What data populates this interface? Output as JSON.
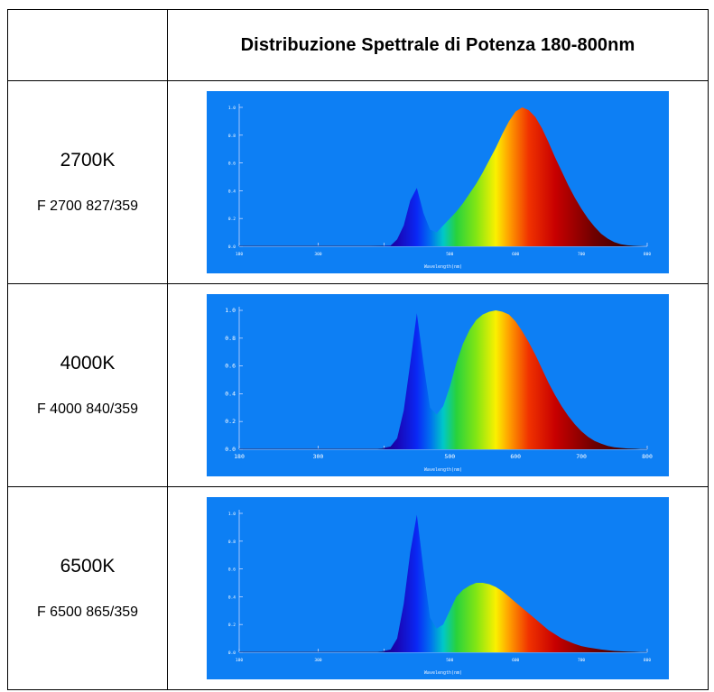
{
  "table": {
    "header": {
      "corner": "",
      "title": "Distribuzione Spettrale di Potenza 180-800nm"
    }
  },
  "chart_data": [
    {
      "type": "area",
      "cct": "2700K",
      "code": "F 2700 827/359",
      "x_ticks": [
        "180",
        "300",
        "",
        "500",
        "600",
        "700",
        "800"
      ],
      "y_ticks": [
        "0.0",
        "0.2",
        "0.4",
        "0.6",
        "0.8",
        "1.0"
      ],
      "xlabel": "Wavelength(nm)",
      "xlim": [
        180,
        800
      ],
      "ylim": [
        0,
        1
      ],
      "x": [
        180,
        380,
        410,
        420,
        430,
        440,
        450,
        460,
        470,
        480,
        490,
        500,
        510,
        520,
        530,
        540,
        550,
        560,
        570,
        580,
        590,
        600,
        610,
        620,
        630,
        640,
        650,
        660,
        670,
        680,
        690,
        700,
        710,
        720,
        730,
        740,
        750,
        760,
        770,
        780,
        790,
        800
      ],
      "y": [
        0,
        0,
        0.005,
        0.05,
        0.15,
        0.33,
        0.42,
        0.24,
        0.12,
        0.1,
        0.15,
        0.2,
        0.25,
        0.31,
        0.38,
        0.45,
        0.53,
        0.62,
        0.71,
        0.81,
        0.9,
        0.97,
        1.0,
        0.98,
        0.93,
        0.85,
        0.75,
        0.64,
        0.54,
        0.44,
        0.35,
        0.27,
        0.2,
        0.14,
        0.09,
        0.055,
        0.03,
        0.015,
        0.007,
        0.003,
        0.001,
        0
      ]
    },
    {
      "type": "area",
      "cct": "4000K",
      "code": "F 4000 840/359",
      "x_ticks": [
        "180",
        "300",
        "",
        "500",
        "600",
        "700",
        "800"
      ],
      "y_ticks": [
        "0.0",
        "0.2",
        "0.4",
        "0.6",
        "0.8",
        "1.0"
      ],
      "xlabel": "Wavelength(nm)",
      "xlim": [
        180,
        800
      ],
      "ylim": [
        0,
        1
      ],
      "x": [
        180,
        390,
        410,
        420,
        430,
        440,
        450,
        460,
        470,
        480,
        490,
        500,
        510,
        520,
        530,
        540,
        550,
        560,
        570,
        580,
        590,
        600,
        610,
        620,
        630,
        640,
        650,
        660,
        670,
        680,
        690,
        700,
        710,
        720,
        730,
        740,
        750,
        760,
        770,
        780,
        790,
        800
      ],
      "y": [
        0,
        0,
        0.02,
        0.08,
        0.28,
        0.62,
        0.98,
        0.62,
        0.3,
        0.25,
        0.31,
        0.45,
        0.62,
        0.76,
        0.86,
        0.93,
        0.97,
        0.99,
        1.0,
        0.99,
        0.97,
        0.92,
        0.85,
        0.77,
        0.68,
        0.58,
        0.48,
        0.39,
        0.31,
        0.24,
        0.18,
        0.13,
        0.09,
        0.06,
        0.04,
        0.025,
        0.015,
        0.01,
        0.006,
        0.004,
        0.002,
        0.001
      ]
    },
    {
      "type": "area",
      "cct": "6500K",
      "code": "F 6500 865/359",
      "x_ticks": [
        "180",
        "300",
        "",
        "500",
        "600",
        "700",
        "800"
      ],
      "y_ticks": [
        "0.0",
        "0.2",
        "0.4",
        "0.6",
        "0.8",
        "1.0"
      ],
      "xlabel": "Wavelength(nm)",
      "xlim": [
        180,
        800
      ],
      "ylim": [
        0,
        1
      ],
      "x": [
        180,
        390,
        410,
        420,
        430,
        440,
        450,
        460,
        470,
        480,
        490,
        500,
        510,
        520,
        530,
        540,
        550,
        560,
        570,
        580,
        590,
        600,
        610,
        620,
        630,
        640,
        650,
        660,
        670,
        680,
        690,
        700,
        710,
        720,
        730,
        740,
        750,
        760,
        770,
        780,
        790,
        800
      ],
      "y": [
        0,
        0,
        0.02,
        0.1,
        0.35,
        0.72,
        0.99,
        0.6,
        0.25,
        0.17,
        0.2,
        0.3,
        0.4,
        0.45,
        0.48,
        0.5,
        0.5,
        0.49,
        0.47,
        0.44,
        0.4,
        0.36,
        0.32,
        0.28,
        0.24,
        0.2,
        0.16,
        0.13,
        0.1,
        0.08,
        0.06,
        0.045,
        0.035,
        0.027,
        0.02,
        0.015,
        0.01,
        0.007,
        0.005,
        0.003,
        0.002,
        0.001
      ]
    }
  ]
}
